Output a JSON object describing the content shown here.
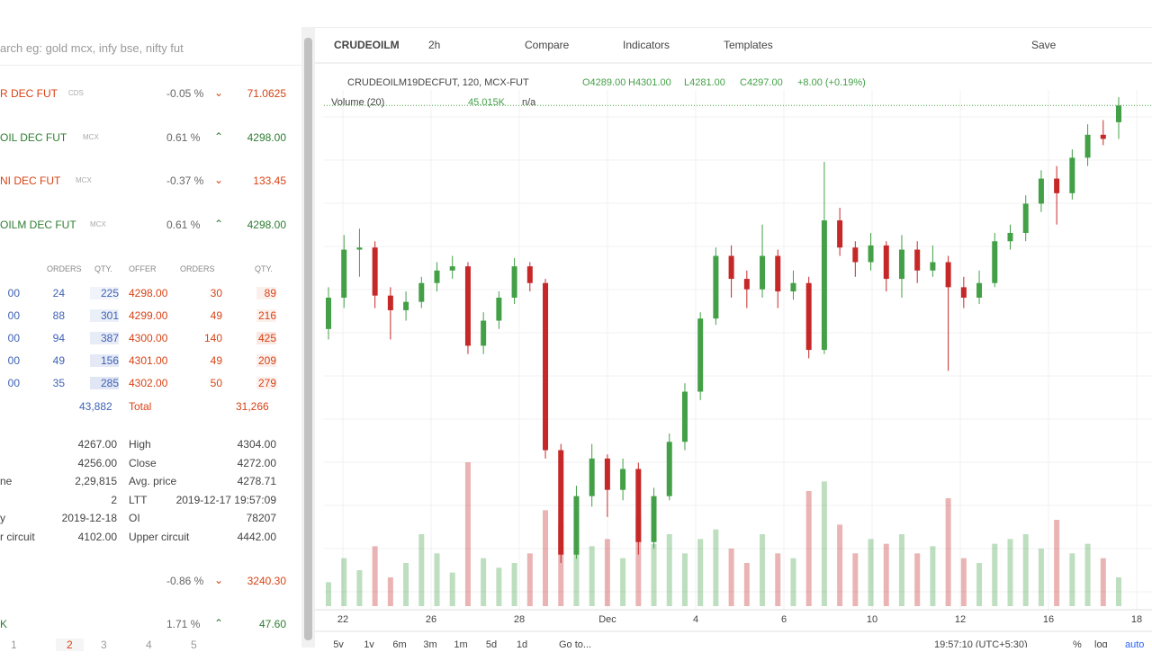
{
  "watchlist": {
    "search": "arch eg: gold mcx, infy bse, nifty fut",
    "items": [
      {
        "name": "R DEC FUT",
        "exchange": "CDS",
        "change": "-0.05 %",
        "price": "71.0625",
        "dir": "down"
      },
      {
        "name": "OIL DEC FUT",
        "exchange": "MCX",
        "change": "0.61 %",
        "price": "4298.00",
        "dir": "up"
      },
      {
        "name": "NI DEC FUT",
        "exchange": "MCX",
        "change": "-0.37 %",
        "price": "133.45",
        "dir": "down"
      },
      {
        "name": "OILM DEC FUT",
        "exchange": "MCX",
        "change": "0.61 %",
        "price": "4298.00",
        "dir": "up"
      }
    ],
    "depth": {
      "headers": [
        "ORDERS",
        "QTY.",
        "OFFER",
        "ORDERS",
        "QTY."
      ],
      "rows": [
        [
          "00",
          "24",
          "225",
          "4298.00",
          "30",
          "89"
        ],
        [
          "00",
          "88",
          "301",
          "4299.00",
          "49",
          "216"
        ],
        [
          "00",
          "94",
          "387",
          "4300.00",
          "140",
          "425"
        ],
        [
          "00",
          "49",
          "156",
          "4301.00",
          "49",
          "209"
        ],
        [
          "00",
          "35",
          "285",
          "4302.00",
          "50",
          "279"
        ]
      ],
      "total": [
        "43,882",
        "Total",
        "31,266"
      ]
    },
    "stats": [
      [
        "",
        "4267.00",
        "High",
        "4304.00"
      ],
      [
        "",
        "4256.00",
        "Close",
        "4272.00"
      ],
      [
        "ne",
        "2,29,815",
        "Avg. price",
        "4278.71"
      ],
      [
        "",
        "2",
        "LTT",
        "2019-12-17 19:57:09"
      ],
      [
        "y",
        "2019-12-18",
        "OI",
        "78207"
      ],
      [
        "r circuit",
        "4102.00",
        "Upper circuit",
        "4442.00"
      ]
    ],
    "more": [
      {
        "name": "",
        "change": "-0.86 %",
        "price": "3240.30",
        "dir": "down"
      },
      {
        "name": "K",
        "change": "1.71 %",
        "price": "47.60",
        "dir": "up"
      }
    ],
    "tabs": [
      "1",
      "2",
      "3",
      "4",
      "5"
    ]
  },
  "toolbar": {
    "symbol": "CRUDEOILM",
    "interval": "2h",
    "compare": "Compare",
    "indicators": "Indicators",
    "templates": "Templates",
    "save": "Save"
  },
  "legend": {
    "instrument": "CRUDEOILM19DECFUT, 120, MCX-FUT",
    "open": "O4289.00",
    "high": "H4301.00",
    "low": "L4281.00",
    "close": "C4297.00",
    "change": "+8.00 (+0.19%)",
    "volume_label": "Volume (20)",
    "volume_value": "45.015K",
    "volume_na": "n/a"
  },
  "bottom": {
    "ranges": [
      "5y",
      "1y",
      "6m",
      "3m",
      "1m",
      "5d",
      "1d"
    ],
    "goto": "Go to...",
    "time": "19:57:10 (UTC+5:30)",
    "pct": "%",
    "log": "log",
    "auto": "auto"
  },
  "chart_data": {
    "type": "candlestick",
    "up_color": "#43a047",
    "down_color": "#c62828",
    "x_labels": [
      "22",
      "26",
      "28",
      "Dec",
      "4",
      "6",
      "10",
      "12",
      "16",
      "18"
    ],
    "candles": [
      [
        4190,
        4210,
        4185,
        4205
      ],
      [
        4205,
        4235,
        4200,
        4228
      ],
      [
        4228,
        4238,
        4215,
        4229
      ],
      [
        4229,
        4232,
        4200,
        4206
      ],
      [
        4206,
        4210,
        4185,
        4199
      ],
      [
        4199,
        4208,
        4194,
        4203
      ],
      [
        4203,
        4215,
        4200,
        4212
      ],
      [
        4212,
        4222,
        4208,
        4218
      ],
      [
        4218,
        4225,
        4214,
        4220
      ],
      [
        4220,
        4222,
        4178,
        4182
      ],
      [
        4182,
        4198,
        4178,
        4194
      ],
      [
        4194,
        4208,
        4190,
        4205
      ],
      [
        4205,
        4224,
        4202,
        4220
      ],
      [
        4220,
        4222,
        4208,
        4212
      ],
      [
        4212,
        4214,
        4128,
        4132
      ],
      [
        4132,
        4135,
        4078,
        4082
      ],
      [
        4082,
        4115,
        4080,
        4110
      ],
      [
        4110,
        4135,
        4105,
        4128
      ],
      [
        4128,
        4130,
        4100,
        4113
      ],
      [
        4113,
        4128,
        4108,
        4123
      ],
      [
        4123,
        4126,
        4082,
        4088
      ],
      [
        4088,
        4114,
        4085,
        4110
      ],
      [
        4110,
        4140,
        4108,
        4136
      ],
      [
        4136,
        4164,
        4132,
        4160
      ],
      [
        4160,
        4198,
        4156,
        4195
      ],
      [
        4195,
        4229,
        4192,
        4225
      ],
      [
        4225,
        4230,
        4205,
        4214
      ],
      [
        4214,
        4218,
        4200,
        4209
      ],
      [
        4209,
        4240,
        4205,
        4225
      ],
      [
        4225,
        4228,
        4200,
        4208
      ],
      [
        4208,
        4218,
        4204,
        4212
      ],
      [
        4212,
        4215,
        4176,
        4180
      ],
      [
        4180,
        4270,
        4178,
        4242
      ],
      [
        4242,
        4248,
        4225,
        4229
      ],
      [
        4229,
        4232,
        4215,
        4222
      ],
      [
        4222,
        4236,
        4218,
        4230
      ],
      [
        4230,
        4232,
        4208,
        4214
      ],
      [
        4214,
        4235,
        4205,
        4228
      ],
      [
        4228,
        4232,
        4212,
        4218
      ],
      [
        4218,
        4230,
        4215,
        4222
      ],
      [
        4222,
        4225,
        4170,
        4210
      ],
      [
        4210,
        4215,
        4200,
        4205
      ],
      [
        4205,
        4218,
        4202,
        4212
      ],
      [
        4212,
        4236,
        4210,
        4232
      ],
      [
        4232,
        4240,
        4228,
        4236
      ],
      [
        4236,
        4254,
        4232,
        4250
      ],
      [
        4250,
        4266,
        4246,
        4262
      ],
      [
        4262,
        4268,
        4240,
        4255
      ],
      [
        4255,
        4276,
        4252,
        4272
      ],
      [
        4272,
        4288,
        4268,
        4283
      ],
      [
        4283,
        4290,
        4278,
        4281
      ],
      [
        4289,
        4301,
        4281,
        4297
      ]
    ],
    "volume": [
      10,
      20,
      15,
      25,
      12,
      18,
      30,
      22,
      14,
      60,
      20,
      16,
      18,
      22,
      40,
      35,
      30,
      25,
      28,
      20,
      38,
      26,
      30,
      22,
      28,
      32,
      24,
      18,
      30,
      22,
      20,
      48,
      52,
      34,
      22,
      28,
      26,
      30,
      22,
      25,
      45,
      20,
      18,
      26,
      28,
      30,
      24,
      36,
      22,
      26,
      20,
      12
    ]
  }
}
